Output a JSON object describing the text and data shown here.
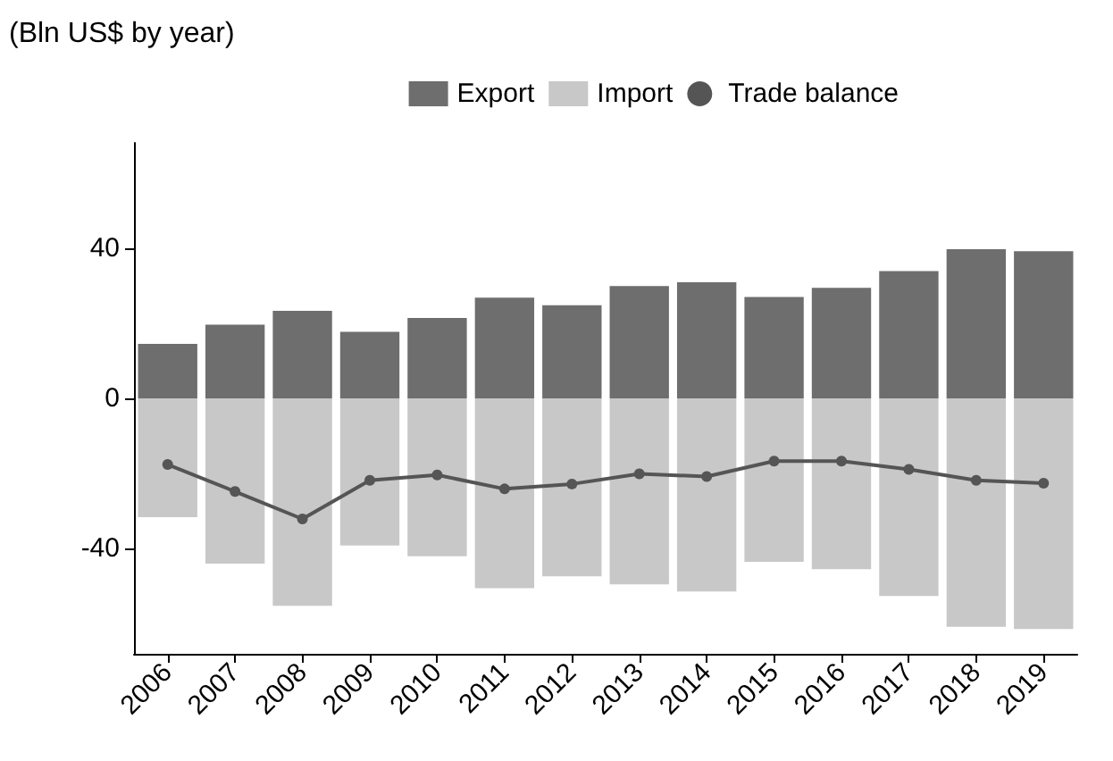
{
  "chart_data": {
    "type": "bar",
    "title": "(Bln US$ by year)",
    "stacked": true,
    "categories": [
      "2006",
      "2007",
      "2008",
      "2009",
      "2010",
      "2011",
      "2012",
      "2013",
      "2014",
      "2015",
      "2016",
      "2017",
      "2018",
      "2019"
    ],
    "series": [
      {
        "name": "Export",
        "color": "#6e6e6e",
        "values": [
          14.5,
          19.6,
          23.3,
          17.7,
          21.4,
          26.8,
          24.8,
          29.9,
          30.9,
          27.0,
          29.4,
          33.9,
          39.7,
          39.2
        ]
      },
      {
        "name": "Import",
        "color": "#c8c8c8",
        "values": [
          -31.6,
          -44.0,
          -55.2,
          -39.2,
          -42.0,
          -50.5,
          -47.4,
          -49.5,
          -51.4,
          -43.5,
          -45.5,
          -52.6,
          -60.8,
          -61.4
        ]
      },
      {
        "name": "Trade balance",
        "type": "line",
        "color": "#555555",
        "marker": "circle",
        "values": [
          -17.6,
          -24.8,
          -32.1,
          -21.8,
          -20.4,
          -24.1,
          -22.8,
          -20.1,
          -20.8,
          -16.7,
          -16.7,
          -18.9,
          -21.8,
          -22.6
        ]
      }
    ],
    "ylim": [
      -68,
      68
    ],
    "yticks": [
      -40,
      0,
      40
    ],
    "grid": false,
    "legend": "top right"
  }
}
